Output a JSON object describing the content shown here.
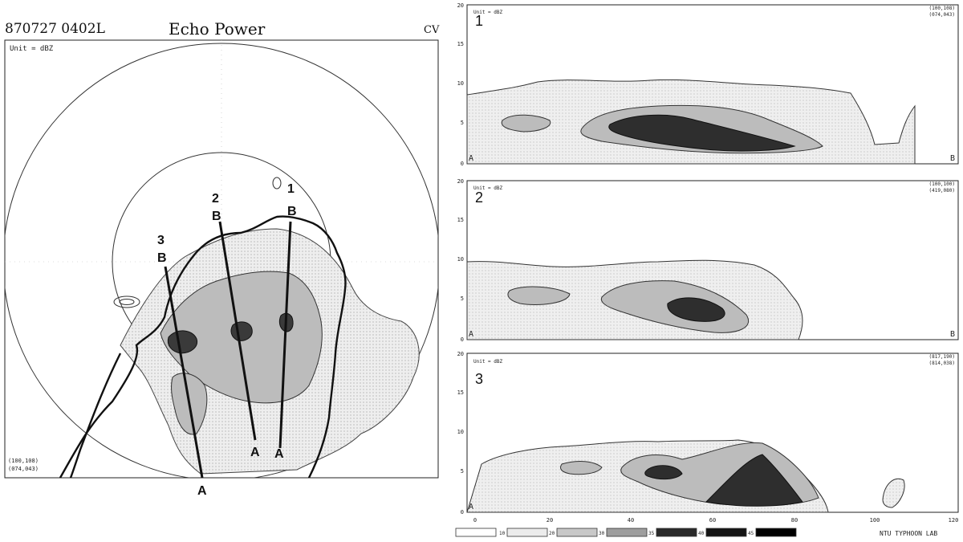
{
  "ppi": {
    "timestamp": "870727 0402L",
    "title": "Echo Power",
    "corner_code": "CV",
    "unit_label": "Unit = dBZ",
    "coord_line1": "(100,108)",
    "coord_line2": "(074,043)",
    "lines": [
      {
        "number": "1",
        "end_a": "A",
        "end_b": "B"
      },
      {
        "number": "2",
        "end_a": "A",
        "end_b": "B"
      },
      {
        "number": "3",
        "end_a": "A",
        "end_b": "B"
      }
    ]
  },
  "cross_sections": {
    "y_ticks": [
      "20",
      "15",
      "10",
      "5",
      "0"
    ],
    "x_ticks": [
      "0",
      "20",
      "40",
      "60",
      "80",
      "100",
      "120"
    ],
    "left_end": "A",
    "right_end": "B",
    "panels": [
      {
        "number": "1",
        "unit": "Unit = dBZ",
        "coord1": "(100,108)",
        "coord2": "(074,043)"
      },
      {
        "number": "2",
        "unit": "Unit = dBZ",
        "coord1": "(100,100)",
        "coord2": "(419,080)"
      },
      {
        "number": "3",
        "unit": "Unit = dBZ",
        "coord1": "(817,190)",
        "coord2": "(814,038)"
      }
    ]
  },
  "legend": {
    "values": [
      "10",
      "20",
      "30",
      "35",
      "40",
      "45"
    ],
    "credit": "NTU TYPHOON LAB",
    "colors": [
      "#ffffff",
      "#ececec",
      "#c8c8c8",
      "#9e9e9e",
      "#2a2a2a",
      "#141414",
      "#000000"
    ]
  }
}
